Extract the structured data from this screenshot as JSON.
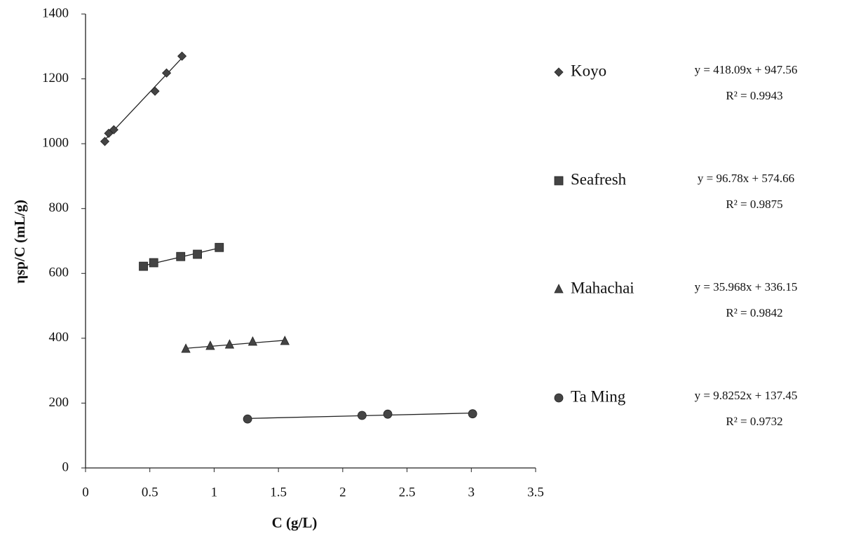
{
  "chart_data": {
    "type": "scatter",
    "x_label": "C (g/L)",
    "y_label": "ηsp/C (mL/g)",
    "xlim": [
      0,
      3.5
    ],
    "xticks": [
      0,
      0.5,
      1,
      1.5,
      2,
      2.5,
      3,
      3.5
    ],
    "ylim": [
      0,
      1400
    ],
    "yticks": [
      0,
      200,
      400,
      600,
      800,
      1000,
      1200,
      1400
    ],
    "grid": false,
    "legend": "right",
    "trendline": true,
    "series": [
      {
        "name": "Koyo",
        "color": "#444444",
        "marker": "diamond",
        "x": [
          0.15,
          0.18,
          0.22,
          0.54,
          0.63,
          0.75
        ],
        "values": [
          1007,
          1032,
          1043,
          1162,
          1218,
          1270
        ],
        "equation": "y = 418.09x + 947.56",
        "r_squared": "R² = 0.9943"
      },
      {
        "name": "Seafresh",
        "color": "#444444",
        "marker": "square",
        "x": [
          0.45,
          0.53,
          0.74,
          0.87,
          1.04
        ],
        "values": [
          622,
          633,
          652,
          659,
          680
        ],
        "equation": "y = 96.78x + 574.66",
        "r_squared": "R² = 0.9875"
      },
      {
        "name": "Mahachai",
        "color": "#444444",
        "marker": "triangle",
        "x": [
          0.78,
          0.97,
          1.12,
          1.3,
          1.55
        ],
        "values": [
          367,
          376,
          380,
          389,
          391
        ],
        "equation": "y = 35.968x + 336.15",
        "r_squared": "R² = 0.9842"
      },
      {
        "name": "Ta Ming",
        "color": "#444444",
        "marker": "circle",
        "x": [
          1.26,
          2.15,
          2.35,
          3.01
        ],
        "values": [
          151,
          162,
          166,
          167
        ],
        "equation": "y = 9.8252x + 137.45",
        "r_squared": "R² = 0.9732"
      }
    ]
  }
}
